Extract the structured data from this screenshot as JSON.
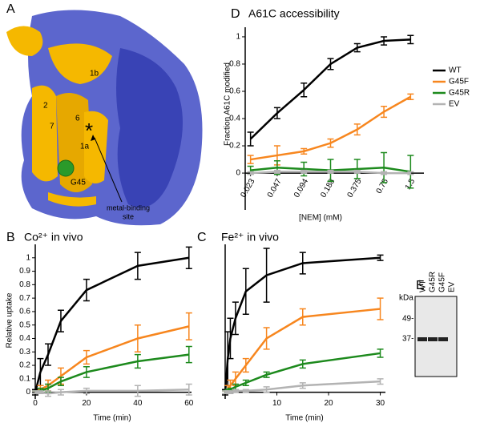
{
  "panel_labels": [
    "A",
    "B",
    "C",
    "D",
    "E"
  ],
  "panel_a": {
    "helix_labels": [
      "1b",
      "2",
      "7",
      "6",
      "1a"
    ],
    "residue": "G45",
    "site_marker": "*",
    "site_label": [
      "metal-binding",
      "site"
    ]
  },
  "panel_e": {
    "unit": "kDa",
    "markers": [
      "49-",
      "37-"
    ],
    "lanes": [
      "WT",
      "G45R",
      "G45F",
      "EV"
    ]
  },
  "chart_data": [
    {
      "type": "line",
      "title": "A61C accessibility",
      "x_label": "[NEM] (mM)",
      "y_label": "Fraction A61C modified",
      "categories": [
        "0.023",
        "0.047",
        "0.094",
        "0.188",
        "0.375",
        "0.75",
        "1.5"
      ],
      "ylim": [
        -0.27,
        1.07
      ],
      "yticks": [
        0,
        0.2,
        0.4,
        0.6,
        0.8,
        1
      ],
      "legend": "right",
      "series": [
        {
          "name": "WT",
          "color": "#000000",
          "values": [
            0.25,
            0.44,
            0.61,
            0.8,
            0.92,
            0.97,
            0.98
          ],
          "errors": [
            0.05,
            0.04,
            0.05,
            0.04,
            0.03,
            0.03,
            0.03
          ]
        },
        {
          "name": "G45F",
          "color": "#f7861e",
          "values": [
            0.1,
            0.13,
            0.16,
            0.22,
            0.32,
            0.45,
            0.56
          ],
          "errors": [
            0.03,
            0.07,
            0.02,
            0.03,
            0.04,
            0.04,
            0.02
          ]
        },
        {
          "name": "G45R",
          "color": "#1d8a1d",
          "values": [
            0.02,
            0.04,
            0.03,
            0.02,
            0.03,
            0.04,
            0.01
          ],
          "errors": [
            0.03,
            0.05,
            0.05,
            0.08,
            0.07,
            0.11,
            0.12
          ]
        },
        {
          "name": "EV",
          "color": "#b3b3b3",
          "values": [
            0.0,
            0.01,
            0.01,
            0.01,
            0.01,
            0.0,
            0.0
          ],
          "errors": [
            0.01,
            0.01,
            0.01,
            0.01,
            0.01,
            0.01,
            0.01
          ]
        }
      ]
    },
    {
      "type": "line",
      "title": "Co²⁺ in vivo",
      "x_label": "Time (min)",
      "y_label": "Relative uptake",
      "x": [
        0,
        2,
        5,
        10,
        20,
        40,
        60
      ],
      "xlim": [
        0,
        61
      ],
      "xticks": [
        0,
        20,
        40,
        60
      ],
      "ylim": [
        -0.05,
        1.1
      ],
      "yticks": [
        0,
        0.1,
        0.2,
        0.3,
        0.4,
        0.5,
        0.6,
        0.7,
        0.8,
        0.9,
        1
      ],
      "series": [
        {
          "name": "WT",
          "color": "#000000",
          "values": [
            0,
            0.15,
            0.28,
            0.53,
            0.76,
            0.94,
            1.0
          ],
          "errors": [
            0.02,
            0.1,
            0.08,
            0.08,
            0.08,
            0.1,
            0.08
          ]
        },
        {
          "name": "G45F",
          "color": "#f7861e",
          "values": [
            0,
            0.02,
            0.05,
            0.12,
            0.26,
            0.4,
            0.49
          ],
          "errors": [
            0.01,
            0.03,
            0.04,
            0.06,
            0.05,
            0.1,
            0.1
          ]
        },
        {
          "name": "G45R",
          "color": "#1d8a1d",
          "values": [
            0,
            0.01,
            0.03,
            0.08,
            0.15,
            0.23,
            0.28
          ],
          "errors": [
            0.01,
            0.02,
            0.03,
            0.03,
            0.04,
            0.05,
            0.06
          ]
        },
        {
          "name": "EV",
          "color": "#b3b3b3",
          "values": [
            0,
            0,
            -0.01,
            0,
            0.01,
            0.01,
            0.02
          ],
          "errors": [
            0.01,
            0.01,
            0.02,
            0.02,
            0.02,
            0.04,
            0.04
          ]
        }
      ]
    },
    {
      "type": "line",
      "title": "Fe²⁺ in vivo",
      "x_label": "Time (min)",
      "x": [
        0,
        0.5,
        1,
        2,
        4,
        8,
        15,
        30
      ],
      "xlim": [
        0,
        31
      ],
      "xticks": [
        10,
        20,
        30
      ],
      "ylim": [
        -0.05,
        1.1
      ],
      "series": [
        {
          "name": "WT",
          "color": "#000000",
          "values": [
            0,
            0.25,
            0.4,
            0.55,
            0.75,
            0.87,
            0.96,
            1.0
          ],
          "errors": [
            0.02,
            0.2,
            0.15,
            0.12,
            0.17,
            0.2,
            0.08,
            0.02
          ]
        },
        {
          "name": "G45F",
          "color": "#f7861e",
          "values": [
            0,
            0.02,
            0.05,
            0.1,
            0.2,
            0.4,
            0.56,
            0.62
          ],
          "errors": [
            0.01,
            0.03,
            0.04,
            0.05,
            0.05,
            0.08,
            0.06,
            0.08
          ]
        },
        {
          "name": "G45R",
          "color": "#1d8a1d",
          "values": [
            0,
            0.01,
            0.02,
            0.04,
            0.07,
            0.13,
            0.21,
            0.29
          ],
          "errors": [
            0.01,
            0.01,
            0.01,
            0.02,
            0.02,
            0.02,
            0.03,
            0.03
          ]
        },
        {
          "name": "EV",
          "color": "#b3b3b3",
          "values": [
            0,
            0,
            0,
            0.01,
            0.01,
            0.02,
            0.05,
            0.08
          ],
          "errors": [
            0.01,
            0.01,
            0.01,
            0.01,
            0.01,
            0.02,
            0.02,
            0.02
          ]
        }
      ]
    }
  ]
}
